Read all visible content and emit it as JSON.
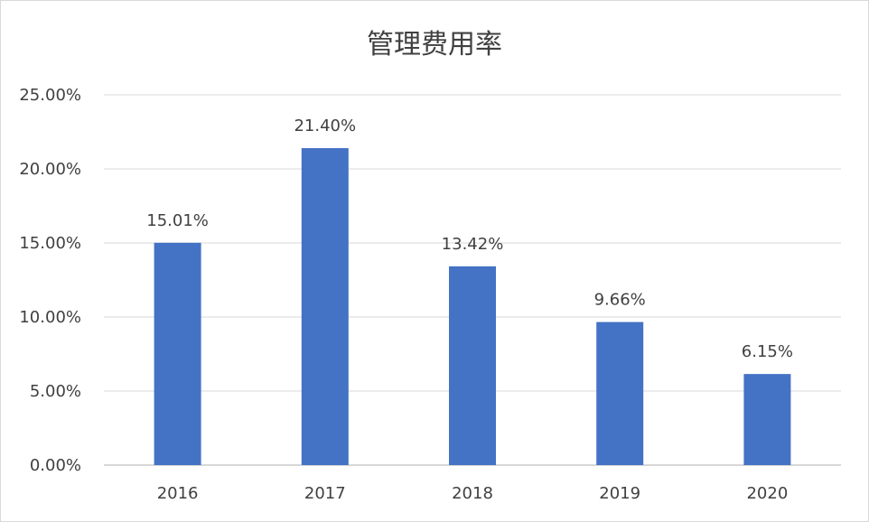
{
  "chart_data": {
    "type": "bar",
    "title": "管理费用率",
    "categories": [
      "2016",
      "2017",
      "2018",
      "2019",
      "2020"
    ],
    "values": [
      15.01,
      21.4,
      13.42,
      9.66,
      6.15
    ],
    "value_labels": [
      "15.01%",
      "21.40%",
      "13.42%",
      "9.66%",
      "6.15%"
    ],
    "yticks": [
      0,
      5,
      10,
      15,
      20,
      25
    ],
    "ytick_labels": [
      "0.00%",
      "5.00%",
      "10.00%",
      "15.00%",
      "20.00%",
      "25.00%"
    ],
    "ylim": [
      0,
      25
    ],
    "xlabel": "",
    "ylabel": "",
    "grid": true,
    "legend": "none",
    "bar_color": "#4472c4"
  }
}
